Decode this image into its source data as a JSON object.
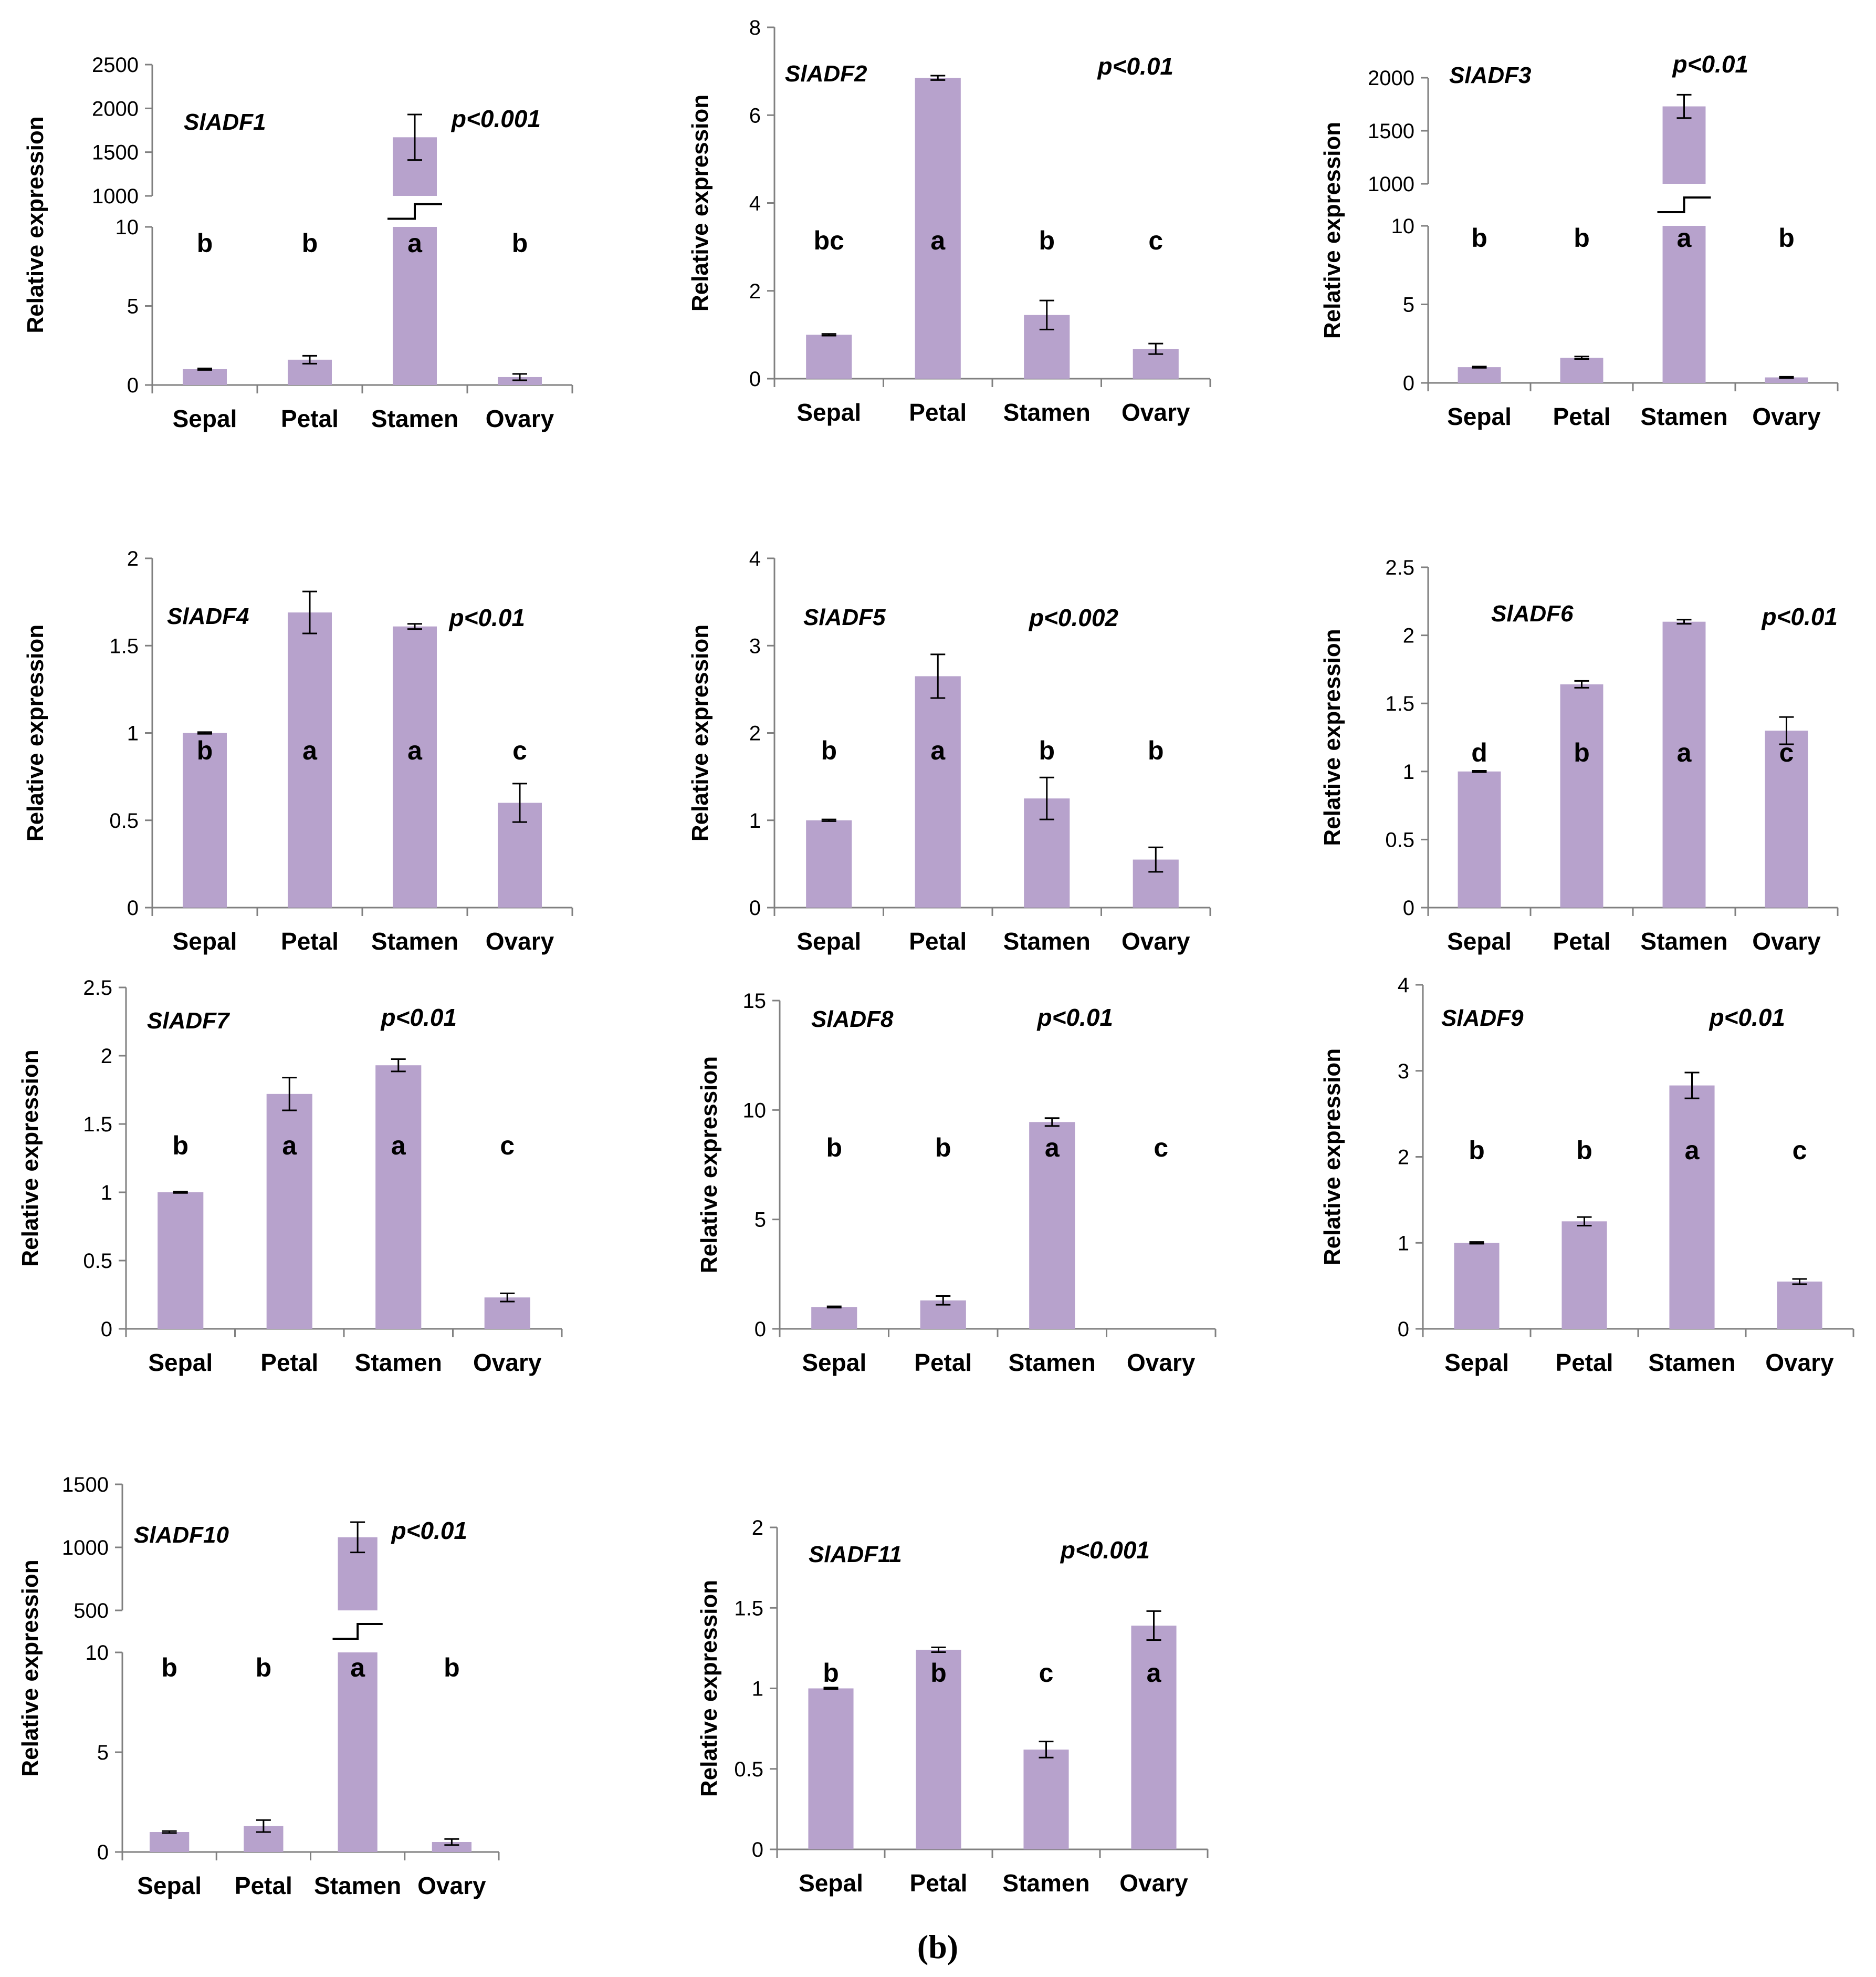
{
  "figure_label": "(b)",
  "bar_color": "#B7A2CC",
  "axis_color": "#808080",
  "chart_data": [
    {
      "type": "bar",
      "gene": "SlADF1",
      "p_value": "p<0.001",
      "ylabel": "Relative expression",
      "categories": [
        "Sepal",
        "Petal",
        "Stamen",
        "Ovary"
      ],
      "values": [
        1.0,
        1.6,
        1670,
        0.5
      ],
      "errors": [
        0.05,
        0.25,
        260,
        0.2
      ],
      "letters": [
        "b",
        "b",
        "a",
        "b"
      ],
      "ylim": [
        0,
        10
      ],
      "yticks": [
        0,
        5,
        10
      ],
      "break": {
        "ylim": [
          1000,
          2500
        ],
        "yticks": [
          1000,
          1500,
          2000,
          2500
        ]
      }
    },
    {
      "type": "bar",
      "gene": "SlADF2",
      "p_value": "p<0.01",
      "ylabel": "Relative expression",
      "categories": [
        "Sepal",
        "Petal",
        "Stamen",
        "Ovary"
      ],
      "values": [
        1.0,
        6.85,
        1.45,
        0.68
      ],
      "errors": [
        0.02,
        0.05,
        0.33,
        0.12
      ],
      "letters": [
        "bc",
        "a",
        "b",
        "c"
      ],
      "ylim": [
        0,
        8
      ],
      "yticks": [
        0,
        2,
        4,
        6,
        8
      ]
    },
    {
      "type": "bar",
      "gene": "SlADF3",
      "p_value": "p<0.01",
      "ylabel": "Relative expression",
      "categories": [
        "Sepal",
        "Petal",
        "Stamen",
        "Ovary"
      ],
      "values": [
        1.0,
        1.6,
        1730,
        0.35
      ],
      "errors": [
        0.04,
        0.08,
        110,
        0.04
      ],
      "letters": [
        "b",
        "b",
        "a",
        "b"
      ],
      "ylim": [
        0,
        10
      ],
      "yticks": [
        0,
        5,
        10
      ],
      "break": {
        "ylim": [
          1000,
          2000
        ],
        "yticks": [
          1000,
          1500,
          2000
        ]
      }
    },
    {
      "type": "bar",
      "gene": "SlADF4",
      "p_value": "p<0.01",
      "ylabel": "Relative expression",
      "categories": [
        "Sepal",
        "Petal",
        "Stamen",
        "Ovary"
      ],
      "values": [
        1.0,
        1.69,
        1.61,
        0.6
      ],
      "errors": [
        0.005,
        0.12,
        0.015,
        0.11
      ],
      "letters": [
        "b",
        "a",
        "a",
        "c"
      ],
      "ylim": [
        0,
        2
      ],
      "yticks": [
        0,
        0.5,
        1,
        1.5,
        2
      ]
    },
    {
      "type": "bar",
      "gene": "SlADF5",
      "p_value": "p<0.002",
      "ylabel": "Relative expression",
      "categories": [
        "Sepal",
        "Petal",
        "Stamen",
        "Ovary"
      ],
      "values": [
        1.0,
        2.65,
        1.25,
        0.55
      ],
      "errors": [
        0.01,
        0.25,
        0.24,
        0.14
      ],
      "letters": [
        "b",
        "a",
        "b",
        "b"
      ],
      "ylim": [
        0,
        4
      ],
      "yticks": [
        0,
        1,
        2,
        3,
        4
      ]
    },
    {
      "type": "bar",
      "gene": "SlADF6",
      "p_value": "p<0.01",
      "ylabel": "Relative expression",
      "categories": [
        "Sepal",
        "Petal",
        "Stamen",
        "Ovary"
      ],
      "values": [
        1.0,
        1.64,
        2.1,
        1.3
      ],
      "errors": [
        0.005,
        0.025,
        0.015,
        0.1
      ],
      "letters": [
        "d",
        "b",
        "a",
        "c"
      ],
      "ylim": [
        0,
        2.5
      ],
      "yticks": [
        0,
        0.5,
        1,
        1.5,
        2,
        2.5
      ]
    },
    {
      "type": "bar",
      "gene": "SlADF7",
      "p_value": "p<0.01",
      "ylabel": "Relative expression",
      "categories": [
        "Sepal",
        "Petal",
        "Stamen",
        "Ovary"
      ],
      "values": [
        1.0,
        1.72,
        1.93,
        0.23
      ],
      "errors": [
        0.005,
        0.12,
        0.045,
        0.03
      ],
      "letters": [
        "b",
        "a",
        "a",
        "c"
      ],
      "ylim": [
        0,
        2.5
      ],
      "yticks": [
        0,
        0.5,
        1,
        1.5,
        2,
        2.5
      ]
    },
    {
      "type": "bar",
      "gene": "SlADF8",
      "p_value": "p<0.01",
      "ylabel": "Relative expression",
      "categories": [
        "Sepal",
        "Petal",
        "Stamen",
        "Ovary"
      ],
      "values": [
        1.0,
        1.3,
        9.45,
        0
      ],
      "errors": [
        0.03,
        0.2,
        0.18,
        0
      ],
      "letters": [
        "b",
        "b",
        "a",
        "c"
      ],
      "ylim": [
        0,
        15
      ],
      "yticks": [
        0,
        5,
        10,
        15
      ]
    },
    {
      "type": "bar",
      "gene": "SlADF9",
      "p_value": "p<0.01",
      "ylabel": "Relative expression",
      "categories": [
        "Sepal",
        "Petal",
        "Stamen",
        "Ovary"
      ],
      "values": [
        1.0,
        1.25,
        2.83,
        0.55
      ],
      "errors": [
        0.01,
        0.05,
        0.15,
        0.03
      ],
      "letters": [
        "b",
        "b",
        "a",
        "c"
      ],
      "ylim": [
        0,
        4
      ],
      "yticks": [
        0,
        1,
        2,
        3,
        4
      ]
    },
    {
      "type": "bar",
      "gene": "SlADF10",
      "p_value": "p<0.01",
      "ylabel": "Relative expression",
      "categories": [
        "Sepal",
        "Petal",
        "Stamen",
        "Ovary"
      ],
      "values": [
        1.0,
        1.3,
        1080,
        0.5
      ],
      "errors": [
        0.05,
        0.3,
        120,
        0.15
      ],
      "letters": [
        "b",
        "b",
        "a",
        "b"
      ],
      "ylim": [
        0,
        10
      ],
      "yticks": [
        0,
        5,
        10
      ],
      "break": {
        "ylim": [
          500,
          1500
        ],
        "yticks": [
          500,
          1000,
          1500
        ]
      }
    },
    {
      "type": "bar",
      "gene": "SlADF11",
      "p_value": "p<0.001",
      "ylabel": "Relative expression",
      "categories": [
        "Sepal",
        "Petal",
        "Stamen",
        "Ovary"
      ],
      "values": [
        1.0,
        1.24,
        0.62,
        1.39
      ],
      "errors": [
        0.005,
        0.015,
        0.05,
        0.09
      ],
      "letters": [
        "b",
        "b",
        "c",
        "a"
      ],
      "ylim": [
        0,
        2
      ],
      "yticks": [
        0,
        0.5,
        1,
        1.5,
        2
      ]
    }
  ]
}
